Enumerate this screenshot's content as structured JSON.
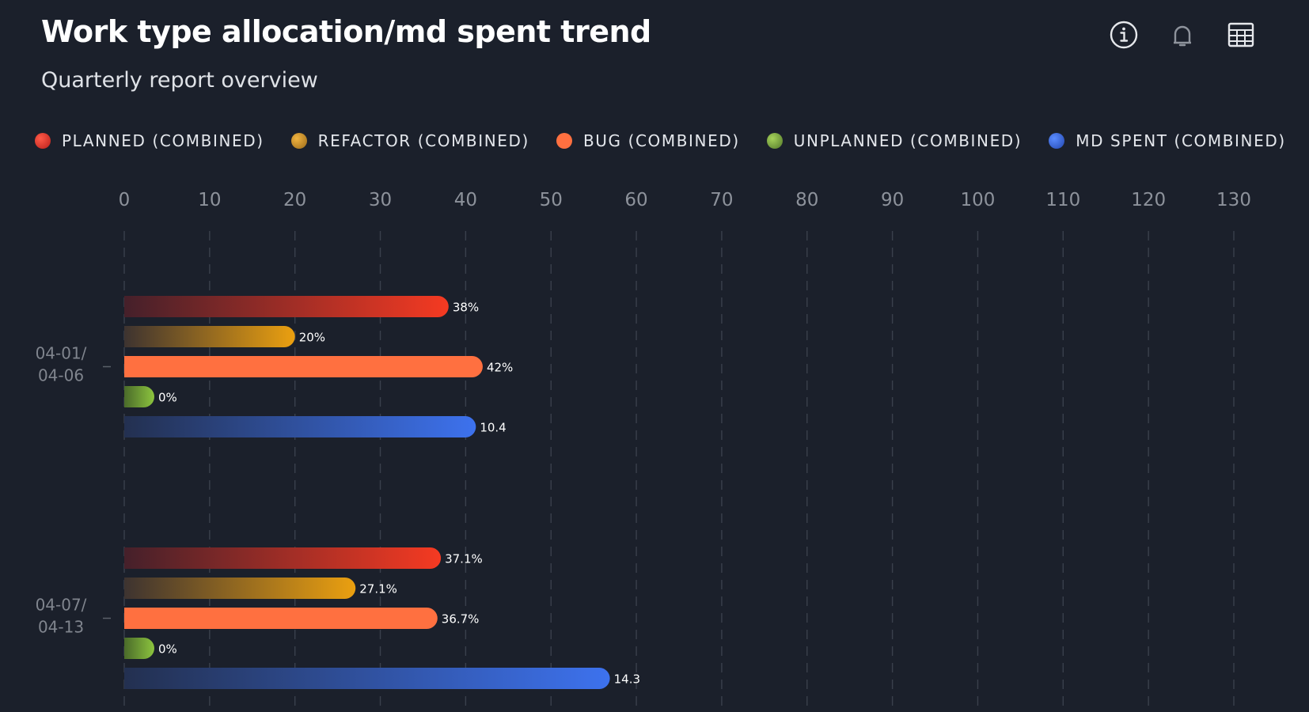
{
  "header": {
    "title": "Work type allocation/md spent trend",
    "subtitle": "Quarterly report overview"
  },
  "toolbar": {
    "icons": [
      "info-icon",
      "bell-icon",
      "table-icon"
    ]
  },
  "legend": [
    {
      "label": "PLANNED (COMBINED)",
      "color": "#e0322a"
    },
    {
      "label": "REFACTOR (COMBINED)",
      "color": "#d49520"
    },
    {
      "label": "BUG (COMBINED)",
      "color": "#ff7040"
    },
    {
      "label": "UNPLANNED (COMBINED)",
      "color": "#7cae3a"
    },
    {
      "label": "MD SPENT (COMBINED)",
      "color": "#3b6fe0"
    }
  ],
  "chart_data": {
    "type": "bar",
    "orientation": "horizontal",
    "xlim": [
      0,
      130
    ],
    "xticks": [
      0,
      10,
      20,
      30,
      40,
      50,
      60,
      70,
      80,
      90,
      100,
      110,
      120,
      130
    ],
    "grid": "vertical dashed",
    "categories": [
      {
        "line1": "04-01/",
        "line2": "04-06"
      },
      {
        "line1": "04-07/",
        "line2": "04-13"
      }
    ],
    "series": [
      {
        "name": "PLANNED (COMBINED)",
        "colors": [
          "#45202a",
          "#f53a22"
        ],
        "values": [
          38,
          37.1
        ],
        "labels": [
          "38%",
          "37.1%"
        ]
      },
      {
        "name": "REFACTOR (COMBINED)",
        "colors": [
          "#3d3330",
          "#eba010"
        ],
        "values": [
          20,
          27.1
        ],
        "labels": [
          "20%",
          "27.1%"
        ]
      },
      {
        "name": "BUG (COMBINED)",
        "colors": [
          "#ff7040",
          "#ff7040"
        ],
        "values": [
          42,
          36.7
        ],
        "labels": [
          "42%",
          "36.7%"
        ]
      },
      {
        "name": "UNPLANNED (COMBINED)",
        "colors": [
          "#4a6a2a",
          "#8cc43e"
        ],
        "values": [
          0,
          0
        ],
        "labels": [
          "0%",
          "0%"
        ]
      },
      {
        "name": "MD SPENT (COMBINED)",
        "colors": [
          "#233050",
          "#3d72ee"
        ],
        "values": [
          41.2,
          56.9
        ],
        "labels": [
          "10.4",
          "14.3"
        ]
      }
    ]
  }
}
